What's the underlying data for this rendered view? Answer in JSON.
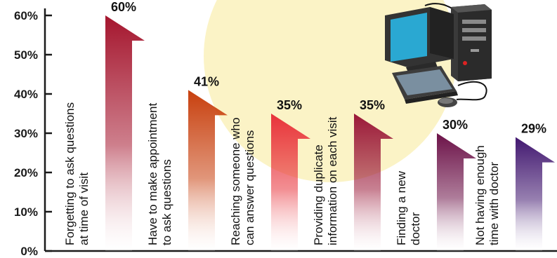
{
  "chart_data": {
    "type": "bar",
    "title": "",
    "xlabel": "",
    "ylabel": "",
    "ylim": [
      0,
      60
    ],
    "yticks": [
      "0%",
      "10%",
      "20%",
      "30%",
      "40%",
      "50%",
      "60%"
    ],
    "categories": [
      [
        "Forgetting to ask questions",
        "at time of visit"
      ],
      [
        "Have to make appointment",
        "to ask questions"
      ],
      [
        "Reaching someone who",
        "can answer questions"
      ],
      [
        "Providing duplicate",
        "information on each visit"
      ],
      [
        "Finding a new",
        "doctor"
      ],
      [
        "Not having enough",
        "time with doctor"
      ]
    ],
    "values": [
      60,
      41,
      35,
      35,
      30,
      29
    ],
    "value_labels": [
      "60%",
      "41%",
      "35%",
      "35%",
      "30%",
      "29%"
    ],
    "colors": [
      "#a5162e",
      "#c8400e",
      "#e8323a",
      "#9a1838",
      "#6c1248",
      "#421870"
    ],
    "grid": false,
    "legend": "none",
    "decoration": "computer-illustration"
  }
}
